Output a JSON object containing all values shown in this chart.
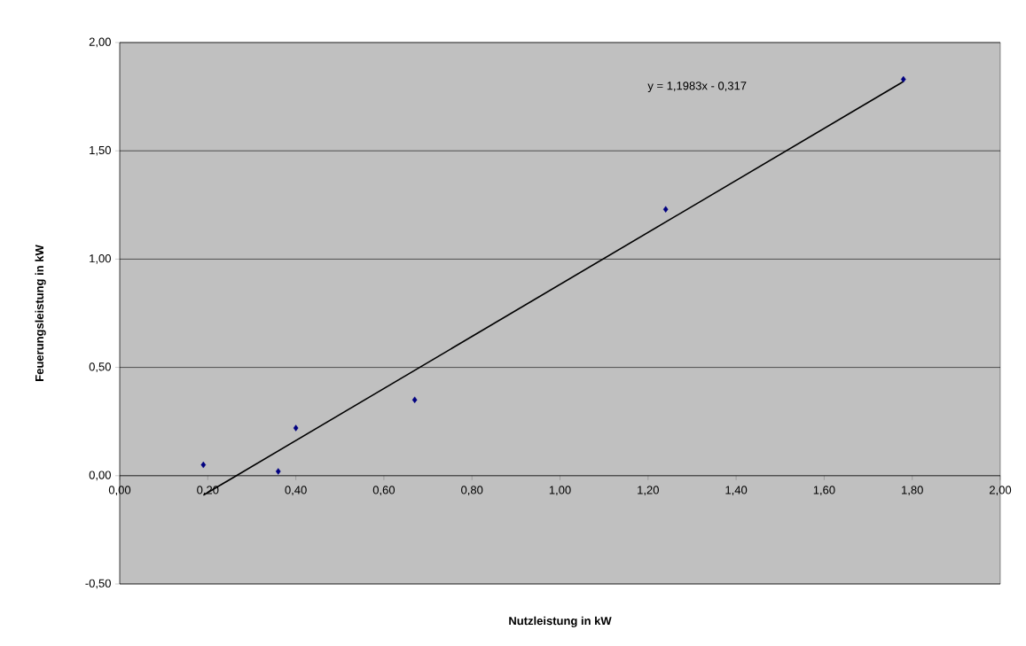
{
  "chart_data": {
    "type": "scatter",
    "xlabel": "Nutzleistung in kW",
    "ylabel": "Feuerungsleistung in kW",
    "annotations": [
      "y = 1,1983x - 0,317"
    ],
    "xlim": [
      0,
      2
    ],
    "ylim": [
      -0.5,
      2
    ],
    "xticks": [
      {
        "value": 0,
        "label": "0,00"
      },
      {
        "value": 0.2,
        "label": "0,20"
      },
      {
        "value": 0.4,
        "label": "0,40"
      },
      {
        "value": 0.6,
        "label": "0,60"
      },
      {
        "value": 0.8,
        "label": "0,80"
      },
      {
        "value": 1,
        "label": "1,00"
      },
      {
        "value": 1.2,
        "label": "1,20"
      },
      {
        "value": 1.4,
        "label": "1,40"
      },
      {
        "value": 1.6,
        "label": "1,60"
      },
      {
        "value": 1.8,
        "label": "1,80"
      },
      {
        "value": 2,
        "label": "2,00"
      }
    ],
    "yticks": [
      {
        "value": -0.5,
        "label": "-0,50"
      },
      {
        "value": 0,
        "label": "0,00"
      },
      {
        "value": 0.5,
        "label": "0,50"
      },
      {
        "value": 1,
        "label": "1,00"
      },
      {
        "value": 1.5,
        "label": "1,50"
      },
      {
        "value": 2,
        "label": "2,00"
      }
    ],
    "grid": "y",
    "marker": "diamond",
    "series": [
      {
        "color": "#000080",
        "x": [
          0.19,
          0.36,
          0.4,
          0.67,
          1.24,
          1.78
        ],
        "values": [
          0.05,
          0.02,
          0.22,
          0.35,
          1.23,
          1.83
        ]
      },
      {
        "type": "line",
        "marker": "none",
        "color": "#000000",
        "x": [
          0.19,
          1.78
        ],
        "values": [
          -0.09,
          1.82
        ]
      }
    ]
  }
}
